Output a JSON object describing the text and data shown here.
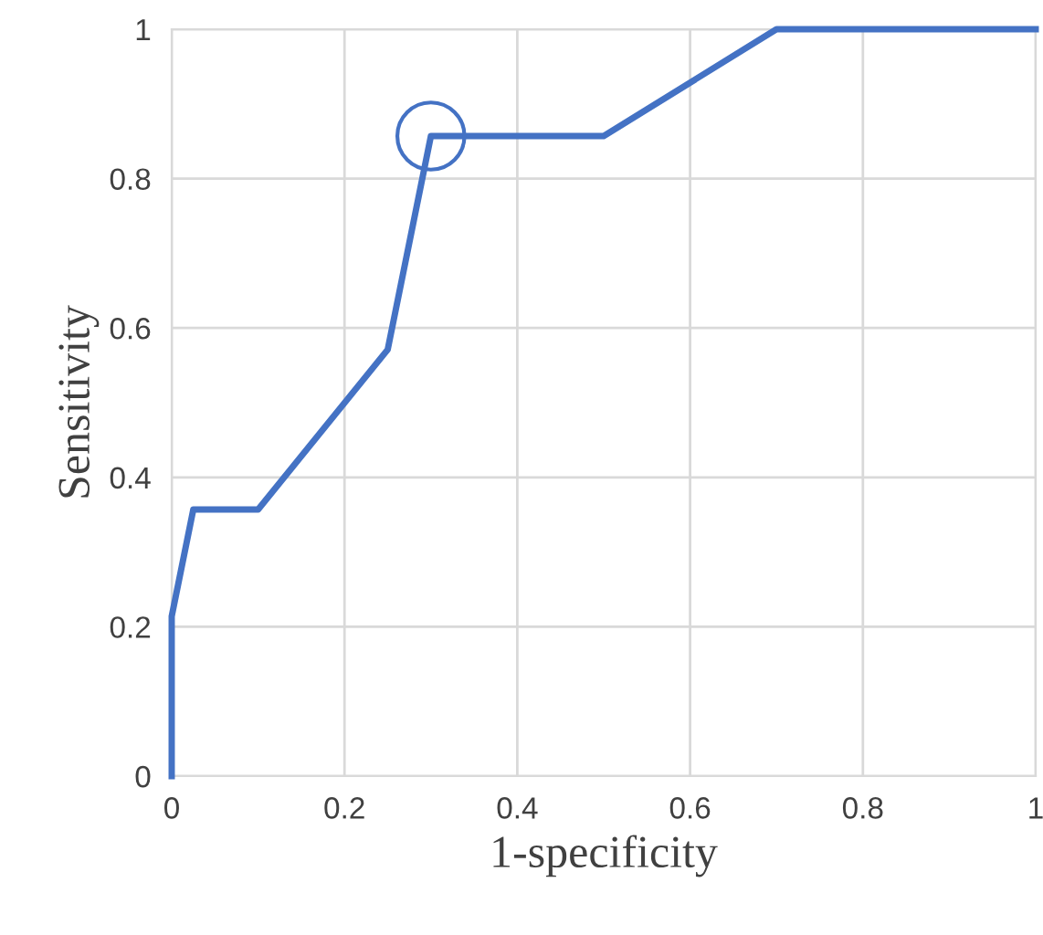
{
  "chart_data": {
    "type": "line",
    "xlabel": "1-specificity",
    "ylabel": "Sensitivity",
    "series": [
      {
        "color": "#4472c4",
        "x": [
          0,
          0,
          0.025,
          0.1,
          0.25,
          0.3,
          0.5,
          0.7,
          1
        ],
        "values": [
          0,
          0.214,
          0.357,
          0.357,
          0.571,
          0.857,
          0.857,
          1,
          1
        ],
        "marker": "none"
      },
      {
        "type": "scatter",
        "color": "#4472c4",
        "x": [
          0.3
        ],
        "values": [
          0.857
        ],
        "marker": "circle"
      }
    ],
    "xlim": [
      0,
      1
    ],
    "ylim": [
      0,
      1
    ],
    "xticks": [
      0,
      0.2,
      0.4,
      0.6,
      0.8,
      1
    ],
    "yticks": [
      0,
      0.2,
      0.4,
      0.6,
      0.8,
      1
    ],
    "grid": true,
    "legend": false
  }
}
